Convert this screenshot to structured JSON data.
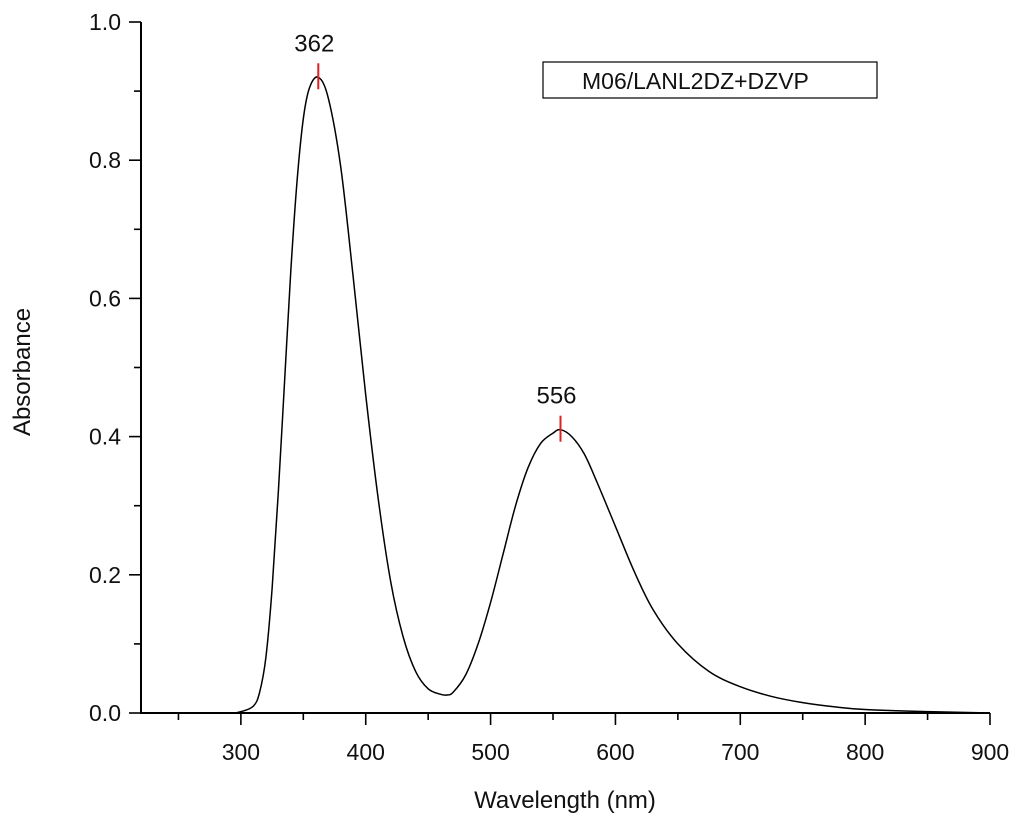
{
  "chart_data": {
    "type": "line",
    "title": "",
    "xlabel": "Wavelength (nm)",
    "ylabel": "Absorbance",
    "xlim": [
      220,
      900
    ],
    "ylim": [
      0,
      1.0
    ],
    "x_ticks": [
      300,
      400,
      500,
      600,
      700,
      800,
      900
    ],
    "y_ticks": [
      "0.0",
      "0.2",
      "0.4",
      "0.6",
      "0.8",
      "1.0"
    ],
    "grid": false,
    "legend": {
      "placement": "top-right",
      "entries": [
        "M06/LANL2DZ+DZVP"
      ]
    },
    "series": [
      {
        "name": "M06/LANL2DZ+DZVP",
        "color": "#000000",
        "points": [
          [
            250,
            0.0
          ],
          [
            290,
            0.0
          ],
          [
            300,
            0.002
          ],
          [
            310,
            0.01
          ],
          [
            315,
            0.03
          ],
          [
            320,
            0.08
          ],
          [
            325,
            0.18
          ],
          [
            330,
            0.32
          ],
          [
            335,
            0.48
          ],
          [
            340,
            0.64
          ],
          [
            345,
            0.77
          ],
          [
            350,
            0.86
          ],
          [
            355,
            0.905
          ],
          [
            362,
            0.92
          ],
          [
            370,
            0.89
          ],
          [
            380,
            0.79
          ],
          [
            390,
            0.63
          ],
          [
            400,
            0.46
          ],
          [
            410,
            0.31
          ],
          [
            420,
            0.19
          ],
          [
            430,
            0.11
          ],
          [
            440,
            0.06
          ],
          [
            450,
            0.035
          ],
          [
            460,
            0.027
          ],
          [
            465,
            0.026
          ],
          [
            470,
            0.03
          ],
          [
            480,
            0.055
          ],
          [
            490,
            0.1
          ],
          [
            500,
            0.16
          ],
          [
            510,
            0.23
          ],
          [
            520,
            0.3
          ],
          [
            530,
            0.355
          ],
          [
            540,
            0.39
          ],
          [
            550,
            0.405
          ],
          [
            556,
            0.41
          ],
          [
            565,
            0.4
          ],
          [
            575,
            0.375
          ],
          [
            585,
            0.335
          ],
          [
            600,
            0.27
          ],
          [
            615,
            0.205
          ],
          [
            630,
            0.15
          ],
          [
            650,
            0.1
          ],
          [
            675,
            0.06
          ],
          [
            700,
            0.038
          ],
          [
            725,
            0.024
          ],
          [
            750,
            0.015
          ],
          [
            775,
            0.009
          ],
          [
            800,
            0.005
          ],
          [
            850,
            0.002
          ],
          [
            900,
            0.0
          ]
        ]
      }
    ],
    "peaks": [
      {
        "x": 362,
        "y": 0.92,
        "label": "362",
        "marker_color": "#dd2222"
      },
      {
        "x": 556,
        "y": 0.41,
        "label": "556",
        "marker_color": "#dd2222"
      }
    ]
  }
}
